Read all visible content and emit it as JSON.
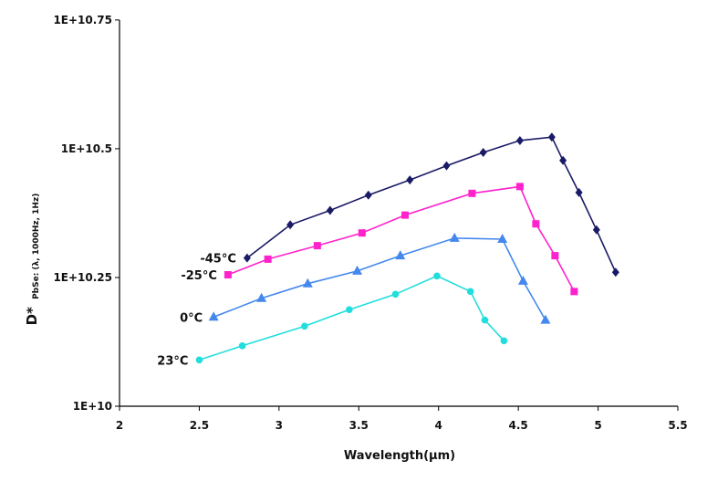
{
  "chart_data": {
    "type": "line",
    "xlabel": "Wavelength(µm)",
    "ylabel_main": "D*",
    "ylabel_sub": "PbSe: (λ, 1000Hz, 1Hz)",
    "xlim": [
      2,
      5.5
    ],
    "ylim": [
      10000000000.0,
      56200000000.0
    ],
    "y_scale": "log",
    "x_ticks": [
      {
        "value": 2,
        "label": "2"
      },
      {
        "value": 2.5,
        "label": "2.5"
      },
      {
        "value": 3,
        "label": "3"
      },
      {
        "value": 3.5,
        "label": "3.5"
      },
      {
        "value": 4,
        "label": "4"
      },
      {
        "value": 4.5,
        "label": "4.5"
      },
      {
        "value": 5,
        "label": "5"
      },
      {
        "value": 5.5,
        "label": "5.5"
      }
    ],
    "y_ticks": [
      {
        "value": 10000000000.0,
        "label": "1E+10"
      },
      {
        "value": 17780000000.0,
        "label": "1E+10.25"
      },
      {
        "value": 31620000000.0,
        "label": "1E+10.5"
      },
      {
        "value": 56230000000.0,
        "label": "1E+10.75"
      }
    ],
    "series": [
      {
        "name": "-45°C",
        "color": "#1a1a66",
        "marker": "diamond",
        "x": [
          2.8,
          3.07,
          3.32,
          3.56,
          3.82,
          4.05,
          4.28,
          4.51,
          4.71,
          4.78,
          4.88,
          4.99,
          5.11
        ],
        "y": [
          19400000000.0,
          22500000000.0,
          24000000000.0,
          25700000000.0,
          27500000000.0,
          29300000000.0,
          31100000000.0,
          32800000000.0,
          33300000000.0,
          30000000000.0,
          26000000000.0,
          22000000000.0,
          18200000000.0
        ]
      },
      {
        "name": "-25°C",
        "color": "#ff22cc",
        "marker": "square",
        "x": [
          2.68,
          2.93,
          3.24,
          3.52,
          3.79,
          4.21,
          4.51,
          4.61,
          4.73,
          4.85
        ],
        "y": [
          18000000000.0,
          19300000000.0,
          20500000000.0,
          21700000000.0,
          23500000000.0,
          25900000000.0,
          26700000000.0,
          22600000000.0,
          19600000000.0,
          16700000000.0
        ]
      },
      {
        "name": "0°C",
        "color": "#4488ee",
        "marker": "triangle",
        "x": [
          2.59,
          2.89,
          3.18,
          3.49,
          3.76,
          4.1,
          4.4,
          4.53,
          4.67
        ],
        "y": [
          14900000000.0,
          16200000000.0,
          17300000000.0,
          18300000000.0,
          19600000000.0,
          21200000000.0,
          21100000000.0,
          17500000000.0,
          14700000000.0
        ]
      },
      {
        "name": "23°C",
        "color": "#22dddd",
        "marker": "circle",
        "x": [
          2.5,
          2.77,
          3.16,
          3.44,
          3.73,
          3.99,
          4.2,
          4.29,
          4.41
        ],
        "y": [
          12300000000.0,
          13100000000.0,
          14300000000.0,
          15400000000.0,
          16500000000.0,
          17900000000.0,
          16700000000.0,
          14700000000.0,
          13400000000.0
        ]
      }
    ]
  }
}
